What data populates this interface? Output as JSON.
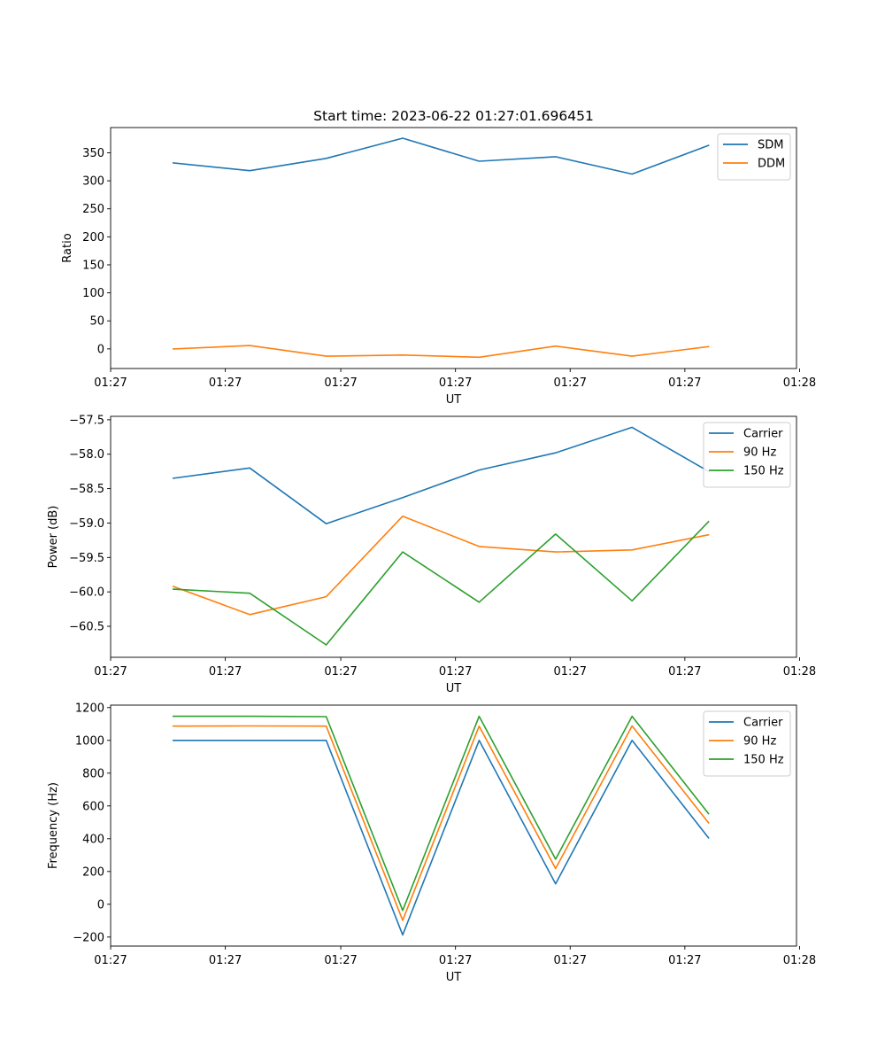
{
  "title": "Start time: 2023-06-22 01:27:01.696451",
  "colors": {
    "blue": "#1f77b4",
    "orange": "#ff7f0e",
    "green": "#2ca02c",
    "axis": "#000000",
    "legend_border": "#cccccc"
  },
  "chart_data": [
    {
      "type": "line",
      "xlabel": "UT",
      "ylabel": "Ratio",
      "x": [
        1,
        2,
        3,
        4,
        5,
        6,
        7,
        8
      ],
      "xlim": [
        0.18,
        9.15
      ],
      "xticks": [
        0.18,
        1.68,
        3.19,
        4.69,
        6.19,
        7.69,
        9.19
      ],
      "xticklabels": [
        "01:27",
        "01:27",
        "01:27",
        "01:27",
        "01:27",
        "01:27",
        "01:28"
      ],
      "ylim": [
        -35,
        395
      ],
      "yticks": [
        0,
        50,
        100,
        150,
        200,
        250,
        300,
        350
      ],
      "legend": "top-right",
      "series": [
        {
          "name": "SDM",
          "color": "#1f77b4",
          "values": [
            332,
            318,
            340,
            376,
            335,
            343,
            312,
            363
          ]
        },
        {
          "name": "DDM",
          "color": "#ff7f0e",
          "values": [
            0,
            6,
            -13,
            -11,
            -15,
            5,
            -13,
            4
          ]
        }
      ]
    },
    {
      "type": "line",
      "xlabel": "UT",
      "ylabel": "Power (dB)",
      "x": [
        1,
        2,
        3,
        4,
        5,
        6,
        7,
        8
      ],
      "xlim": [
        0.18,
        9.15
      ],
      "xticks": [
        0.18,
        1.68,
        3.19,
        4.69,
        6.19,
        7.69,
        9.19
      ],
      "xticklabels": [
        "01:27",
        "01:27",
        "01:27",
        "01:27",
        "01:27",
        "01:27",
        "01:28"
      ],
      "ylim": [
        -60.95,
        -57.45
      ],
      "yticks": [
        -60.5,
        -60.0,
        -59.5,
        -59.0,
        -58.5,
        -58.0,
        -57.5
      ],
      "legend": "top-right",
      "series": [
        {
          "name": "Carrier",
          "color": "#1f77b4",
          "values": [
            -58.35,
            -58.2,
            -59.01,
            -58.63,
            -58.23,
            -57.98,
            -57.61,
            -58.25
          ]
        },
        {
          "name": "90 Hz",
          "color": "#ff7f0e",
          "values": [
            -59.92,
            -60.33,
            -60.07,
            -58.9,
            -59.34,
            -59.42,
            -59.39,
            -59.17
          ]
        },
        {
          "name": "150 Hz",
          "color": "#2ca02c",
          "values": [
            -59.96,
            -60.02,
            -60.77,
            -59.42,
            -60.15,
            -59.16,
            -60.13,
            -58.98
          ]
        }
      ]
    },
    {
      "type": "line",
      "xlabel": "UT",
      "ylabel": "Frequency (Hz)",
      "x": [
        1,
        2,
        3,
        4,
        5,
        6,
        7,
        8
      ],
      "xlim": [
        0.18,
        9.15
      ],
      "xticks": [
        0.18,
        1.68,
        3.19,
        4.69,
        6.19,
        7.69,
        9.19
      ],
      "xticklabels": [
        "01:27",
        "01:27",
        "01:27",
        "01:27",
        "01:27",
        "01:27",
        "01:28"
      ],
      "ylim": [
        -255,
        1215
      ],
      "yticks": [
        -200,
        0,
        200,
        400,
        600,
        800,
        1000,
        1200
      ],
      "legend": "top-right",
      "series": [
        {
          "name": "Carrier",
          "color": "#1f77b4",
          "values": [
            1000,
            1000,
            1000,
            -187,
            1000,
            125,
            1000,
            405
          ]
        },
        {
          "name": "90 Hz",
          "color": "#ff7f0e",
          "values": [
            1087,
            1088,
            1087,
            -98,
            1087,
            218,
            1088,
            497
          ]
        },
        {
          "name": "150 Hz",
          "color": "#2ca02c",
          "values": [
            1147,
            1147,
            1145,
            -38,
            1147,
            275,
            1147,
            553
          ]
        }
      ]
    }
  ]
}
